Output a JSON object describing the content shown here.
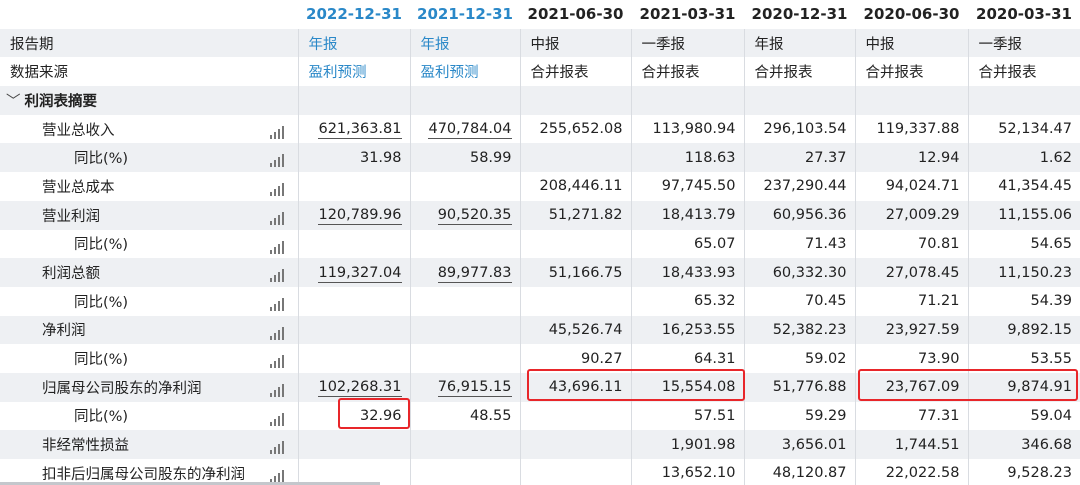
{
  "header": {
    "dates": [
      "2022-12-31",
      "2021-12-31",
      "2021-06-30",
      "2021-03-31",
      "2020-12-31",
      "2020-06-30",
      "2020-03-31"
    ]
  },
  "report_row": {
    "label": "报告期",
    "values": [
      "年报",
      "年报",
      "中报",
      "一季报",
      "年报",
      "中报",
      "一季报"
    ]
  },
  "source_row": {
    "label": "数据来源",
    "values": [
      "盈利预测",
      "盈利预测",
      "合并报表",
      "合并报表",
      "合并报表",
      "合并报表",
      "合并报表"
    ]
  },
  "section": {
    "label": "利润表摘要",
    "icon": "chevron-down-icon"
  },
  "rows": [
    {
      "label": "营业总收入",
      "values": [
        "621,363.81",
        "470,784.04",
        "255,652.08",
        "113,980.94",
        "296,103.54",
        "119,337.88",
        "52,134.47"
      ]
    },
    {
      "label": "同比(%)",
      "values": [
        "31.98",
        "58.99",
        "",
        "118.63",
        "27.37",
        "12.94",
        "1.62"
      ]
    },
    {
      "label": "营业总成本",
      "values": [
        "",
        "",
        "208,446.11",
        "97,745.50",
        "237,290.44",
        "94,024.71",
        "41,354.45"
      ]
    },
    {
      "label": "营业利润",
      "values": [
        "120,789.96",
        "90,520.35",
        "51,271.82",
        "18,413.79",
        "60,956.36",
        "27,009.29",
        "11,155.06"
      ]
    },
    {
      "label": "同比(%)",
      "values": [
        "",
        "",
        "",
        "65.07",
        "71.43",
        "70.81",
        "54.65"
      ]
    },
    {
      "label": "利润总额",
      "values": [
        "119,327.04",
        "89,977.83",
        "51,166.75",
        "18,433.93",
        "60,332.30",
        "27,078.45",
        "11,150.23"
      ]
    },
    {
      "label": "同比(%)",
      "values": [
        "",
        "",
        "",
        "65.32",
        "70.45",
        "71.21",
        "54.39"
      ]
    },
    {
      "label": "净利润",
      "values": [
        "",
        "",
        "45,526.74",
        "16,253.55",
        "52,382.23",
        "23,927.59",
        "9,892.15"
      ]
    },
    {
      "label": "同比(%)",
      "values": [
        "",
        "",
        "90.27",
        "64.31",
        "59.02",
        "73.90",
        "53.55"
      ]
    },
    {
      "label": "归属母公司股东的净利润",
      "values": [
        "102,268.31",
        "76,915.15",
        "43,696.11",
        "15,554.08",
        "51,776.88",
        "23,767.09",
        "9,874.91"
      ]
    },
    {
      "label": "同比(%)",
      "values": [
        "32.96",
        "48.55",
        "",
        "57.51",
        "59.29",
        "77.31",
        "59.04"
      ]
    },
    {
      "label": "非经常性损益",
      "values": [
        "",
        "",
        "",
        "1,901.98",
        "3,656.01",
        "1,744.51",
        "346.68"
      ]
    },
    {
      "label": "扣非后归属母公司股东的净利润",
      "values": [
        "",
        "",
        "",
        "13,652.10",
        "48,120.87",
        "22,022.58",
        "9,528.23"
      ]
    }
  ],
  "colors": {
    "forecast_blue": "#2a88c8",
    "highlight_red": "#e8262a",
    "stripe": "#eef0f3"
  }
}
